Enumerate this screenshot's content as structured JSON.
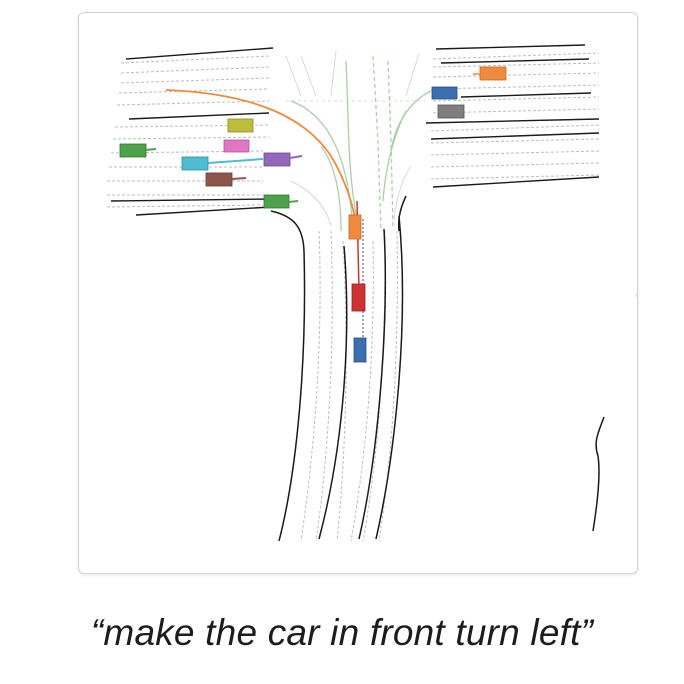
{
  "caption": "“make the car in front turn left”",
  "vehicles": [
    {
      "role": "ego",
      "color": "#3a6fb0"
    },
    {
      "role": "front",
      "color": "#cc3333"
    },
    {
      "role": "turning",
      "color": "#f08a3c"
    },
    {
      "role": "right-top",
      "color": "#f08a3c"
    },
    {
      "role": "right-blue",
      "color": "#3a6fb0"
    },
    {
      "role": "right-gray",
      "color": "#7f7f7f"
    },
    {
      "role": "left-green",
      "color": "#4ea34a"
    },
    {
      "role": "left-olive",
      "color": "#bcbd3c"
    },
    {
      "role": "left-pink",
      "color": "#e077c2"
    },
    {
      "role": "left-cyan",
      "color": "#4dbdd3"
    },
    {
      "role": "left-purple",
      "color": "#9467bd"
    },
    {
      "role": "left-brown",
      "color": "#8c564b"
    },
    {
      "role": "left-green-2",
      "color": "#4ea34a"
    }
  ],
  "colors": {
    "road_edge": "#1a1a1a",
    "lane_divider": "#bdbdbd",
    "planned_path": "#f08a3c",
    "centerline": "#9cc79a"
  }
}
